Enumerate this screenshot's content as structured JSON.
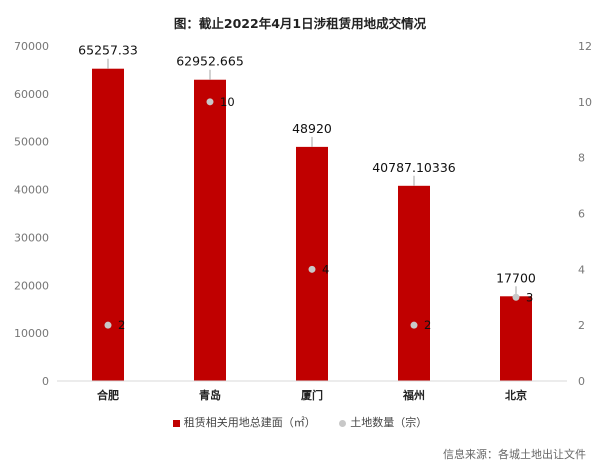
{
  "chart_data": {
    "type": "bar",
    "title": "图：截止2022年4月1日涉租赁用地成交情况",
    "categories": [
      "合肥",
      "青岛",
      "厦门",
      "福州",
      "北京"
    ],
    "series": [
      {
        "name": "租赁相关用地总建面（㎡）",
        "type": "bar",
        "axis": "left",
        "values": [
          65257.33,
          62952.665,
          48920,
          40787.10336,
          17700
        ],
        "labels": [
          "65257.33",
          "62952.665",
          "48920",
          "40787.10336",
          "17700"
        ]
      },
      {
        "name": "土地数量（宗）",
        "type": "scatter",
        "axis": "right",
        "values": [
          2,
          10,
          4,
          2,
          3
        ],
        "labels": [
          "2",
          "10",
          "4",
          "2",
          "3"
        ]
      }
    ],
    "y_left": {
      "ylim": [
        0,
        70000
      ],
      "ticks": [
        "0",
        "10000",
        "20000",
        "30000",
        "40000",
        "50000",
        "60000",
        "70000"
      ]
    },
    "y_right": {
      "ylim": [
        0,
        12
      ],
      "ticks": [
        "0",
        "2",
        "4",
        "6",
        "8",
        "10",
        "12"
      ]
    },
    "grid": false,
    "legend_position": "bottom",
    "colors": {
      "bar": "#c00000",
      "dot": "#c8c8c8"
    }
  },
  "source_text": "信息来源：各城土地出让文件"
}
